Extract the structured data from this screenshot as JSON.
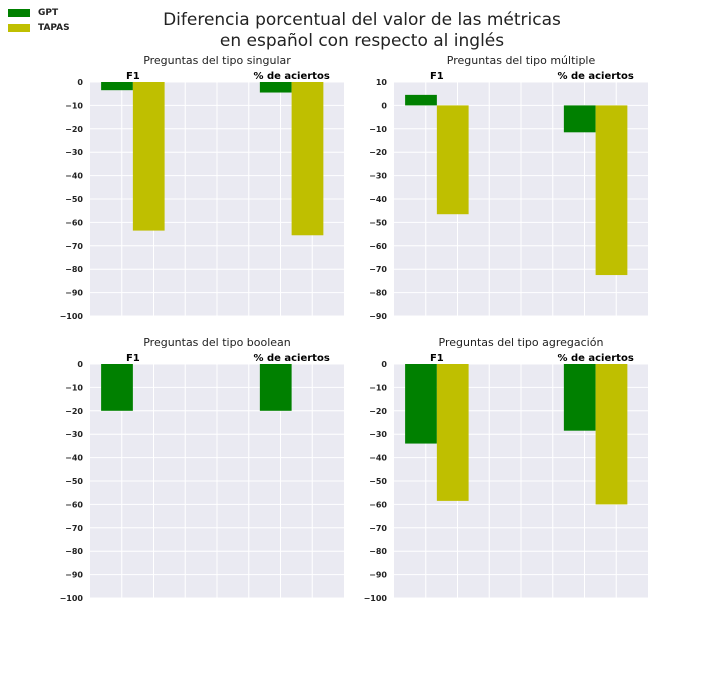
{
  "title_lines": [
    "Diferencia porcentual del valor de las métricas",
    "en español con respecto al inglés"
  ],
  "legend": [
    {
      "label": "GPT",
      "color": "#008000"
    },
    {
      "label": "TAPAS",
      "color": "#bfbf00"
    }
  ],
  "colors": {
    "plot_bg": "#eaeaf2",
    "grid": "#ffffff",
    "GPT": "#008000",
    "TAPAS": "#bfbf00"
  },
  "chart_data": [
    {
      "type": "bar",
      "title": "Preguntas del tipo singular",
      "categories": [
        "F1",
        "% de aciertos"
      ],
      "series": [
        {
          "name": "GPT",
          "values": [
            -3.5,
            -4.5
          ]
        },
        {
          "name": "TAPAS",
          "values": [
            -63.5,
            -65.5
          ]
        }
      ],
      "ylim": [
        -100,
        0
      ],
      "yticks": [
        "0",
        "−10",
        "−20",
        "−30",
        "−40",
        "−50",
        "−60",
        "−70",
        "−80",
        "−90",
        "−100"
      ],
      "grid": true
    },
    {
      "type": "bar",
      "title": "Preguntas del tipo múltiple",
      "categories": [
        "F1",
        "% de aciertos"
      ],
      "series": [
        {
          "name": "GPT",
          "values": [
            4.5,
            -11.5
          ]
        },
        {
          "name": "TAPAS",
          "values": [
            -46.5,
            -72.5
          ]
        }
      ],
      "ylim": [
        -90,
        10
      ],
      "yticks": [
        "10",
        "0",
        "−10",
        "−20",
        "−30",
        "−40",
        "−50",
        "−60",
        "−70",
        "−80",
        "−90"
      ],
      "grid": true
    },
    {
      "type": "bar",
      "title": "Preguntas del tipo boolean",
      "categories": [
        "F1",
        "% de aciertos"
      ],
      "series": [
        {
          "name": "GPT",
          "values": [
            -20,
            -20
          ]
        },
        {
          "name": "TAPAS",
          "values": [
            0,
            0
          ]
        }
      ],
      "ylim": [
        -100,
        0
      ],
      "yticks": [
        "0",
        "−10",
        "−20",
        "−30",
        "−40",
        "−50",
        "−60",
        "−70",
        "−80",
        "−90",
        "−100"
      ],
      "grid": true
    },
    {
      "type": "bar",
      "title": "Preguntas del tipo agregación",
      "categories": [
        "F1",
        "% de aciertos"
      ],
      "series": [
        {
          "name": "GPT",
          "values": [
            -34,
            -28.5
          ]
        },
        {
          "name": "TAPAS",
          "values": [
            -58.5,
            -60
          ]
        }
      ],
      "ylim": [
        -100,
        0
      ],
      "yticks": [
        "0",
        "−10",
        "−20",
        "−30",
        "−40",
        "−50",
        "−60",
        "−70",
        "−80",
        "−90",
        "−100"
      ],
      "grid": true
    }
  ]
}
